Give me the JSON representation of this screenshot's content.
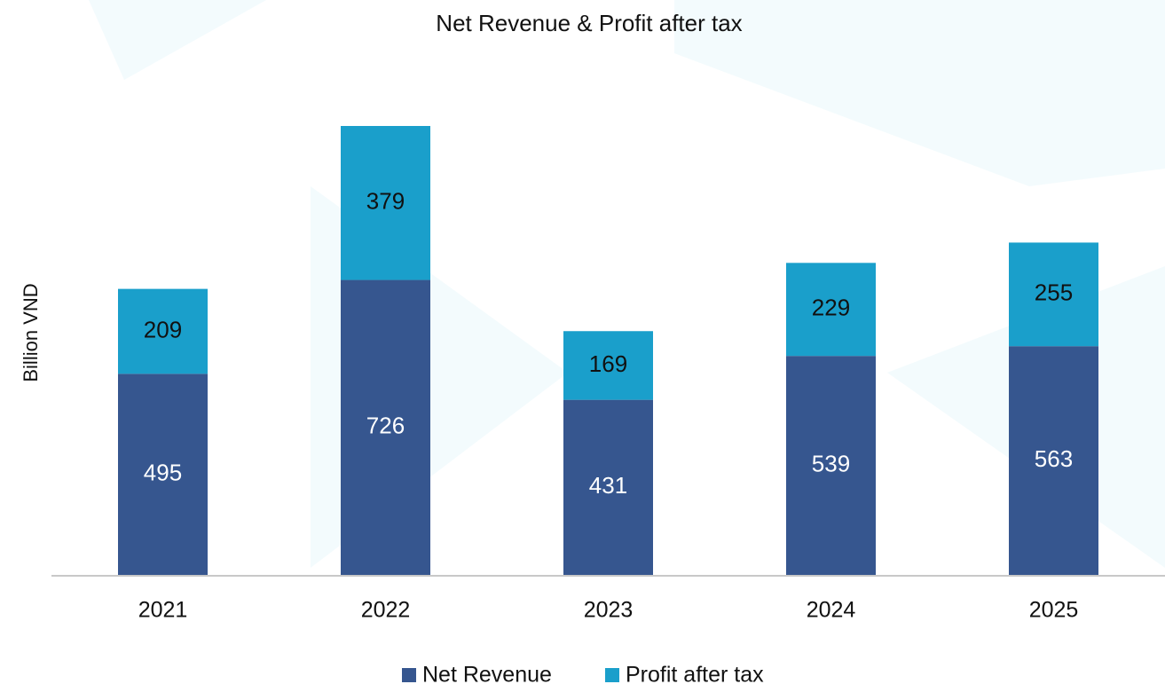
{
  "chart_data": {
    "type": "stacked_bar",
    "title": "Net Revenue & Profit after tax",
    "y_label": "Billion VND",
    "categories": [
      "2021",
      "2022",
      "2023",
      "2024",
      "2025"
    ],
    "series": [
      {
        "name": "Net Revenue",
        "color": "#36568f",
        "values": [
          495,
          726,
          431,
          539,
          563
        ]
      },
      {
        "name": "Profit after tax",
        "color": "#1a9fcb",
        "values": [
          209,
          379,
          169,
          229,
          255
        ]
      }
    ]
  }
}
